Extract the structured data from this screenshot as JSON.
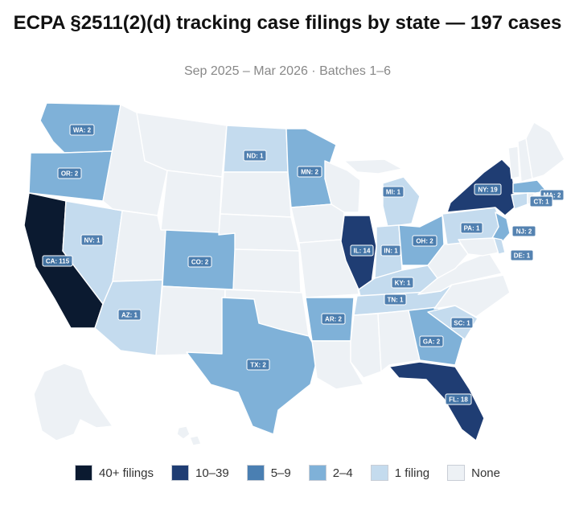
{
  "title": "ECPA §2511(2)(d) tracking case filings by state — 197 cases",
  "subtitle": "Sep 2025 – Mar 2026 · Batches 1–6",
  "colors": {
    "c40": "#0b1a30",
    "c10": "#1f3d73",
    "c5": "#4a7fb2",
    "c2": "#7fb1d8",
    "c1": "#c4dbee",
    "c0": "#edf1f5"
  },
  "labels": {
    "wa": "WA: 2",
    "or": "OR: 2",
    "ca": "CA: 115",
    "nv": "NV: 1",
    "az": "AZ: 1",
    "co": "CO: 2",
    "tx": "TX: 2",
    "nd": "ND: 1",
    "mn": "MN: 2",
    "il": "IL: 14",
    "mi": "MI: 1",
    "in": "IN: 1",
    "oh": "OH: 2",
    "ky": "KY: 1",
    "tn": "TN: 1",
    "ar": "AR: 2",
    "ga": "GA: 2",
    "sc": "SC: 1",
    "fl": "FL: 18",
    "pa": "PA: 1",
    "ny": "NY: 19",
    "nj": "NJ: 2",
    "de": "DE: 1",
    "ma": "MA: 2",
    "ct": "CT: 1"
  },
  "legend": [
    {
      "label": "40+ filings",
      "color": "#0b1a30"
    },
    {
      "label": "10–39",
      "color": "#1f3d73"
    },
    {
      "label": "5–9",
      "color": "#4a7fb2"
    },
    {
      "label": "2–4",
      "color": "#7fb1d8"
    },
    {
      "label": "1 filing",
      "color": "#c4dbee"
    },
    {
      "label": "None",
      "color": "#edf1f5"
    }
  ]
}
